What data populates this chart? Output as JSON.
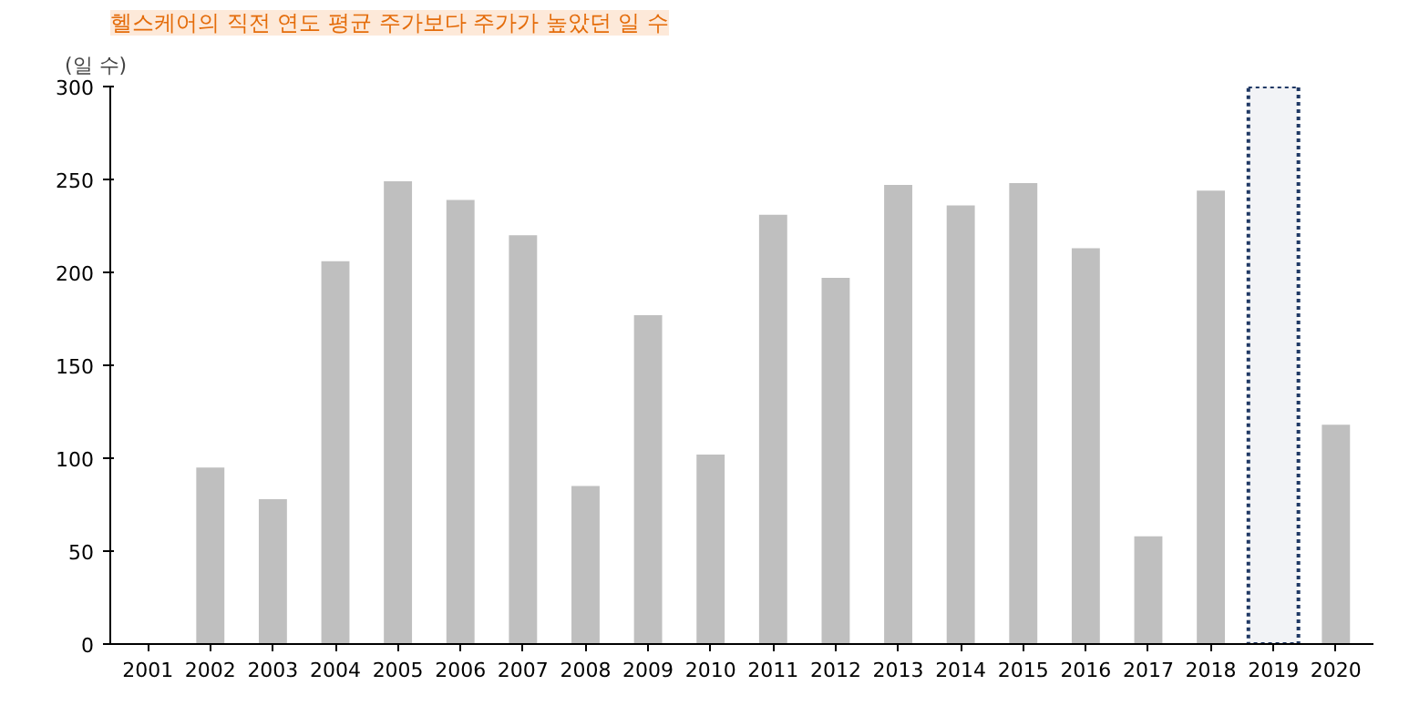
{
  "chart_data": {
    "type": "bar",
    "title": "헬스케어의 직전 연도 평균 주가보다 주가가 높았던 일 수",
    "ylabel": "(일 수)",
    "categories": [
      "2001",
      "2002",
      "2003",
      "2004",
      "2005",
      "2006",
      "2007",
      "2008",
      "2009",
      "2010",
      "2011",
      "2012",
      "2013",
      "2014",
      "2015",
      "2016",
      "2017",
      "2018",
      "2019",
      "2020"
    ],
    "values": [
      null,
      95,
      78,
      206,
      249,
      239,
      220,
      85,
      177,
      102,
      231,
      197,
      247,
      236,
      248,
      213,
      58,
      244,
      null,
      118
    ],
    "color": "#bfbfbf",
    "ylim": [
      0,
      300
    ],
    "yticks": [
      0,
      50,
      100,
      150,
      200,
      250,
      300
    ],
    "grid": false,
    "bands": [
      {
        "axis": "x",
        "from": "2019",
        "to": "2019",
        "color": "#1f3864"
      }
    ]
  }
}
